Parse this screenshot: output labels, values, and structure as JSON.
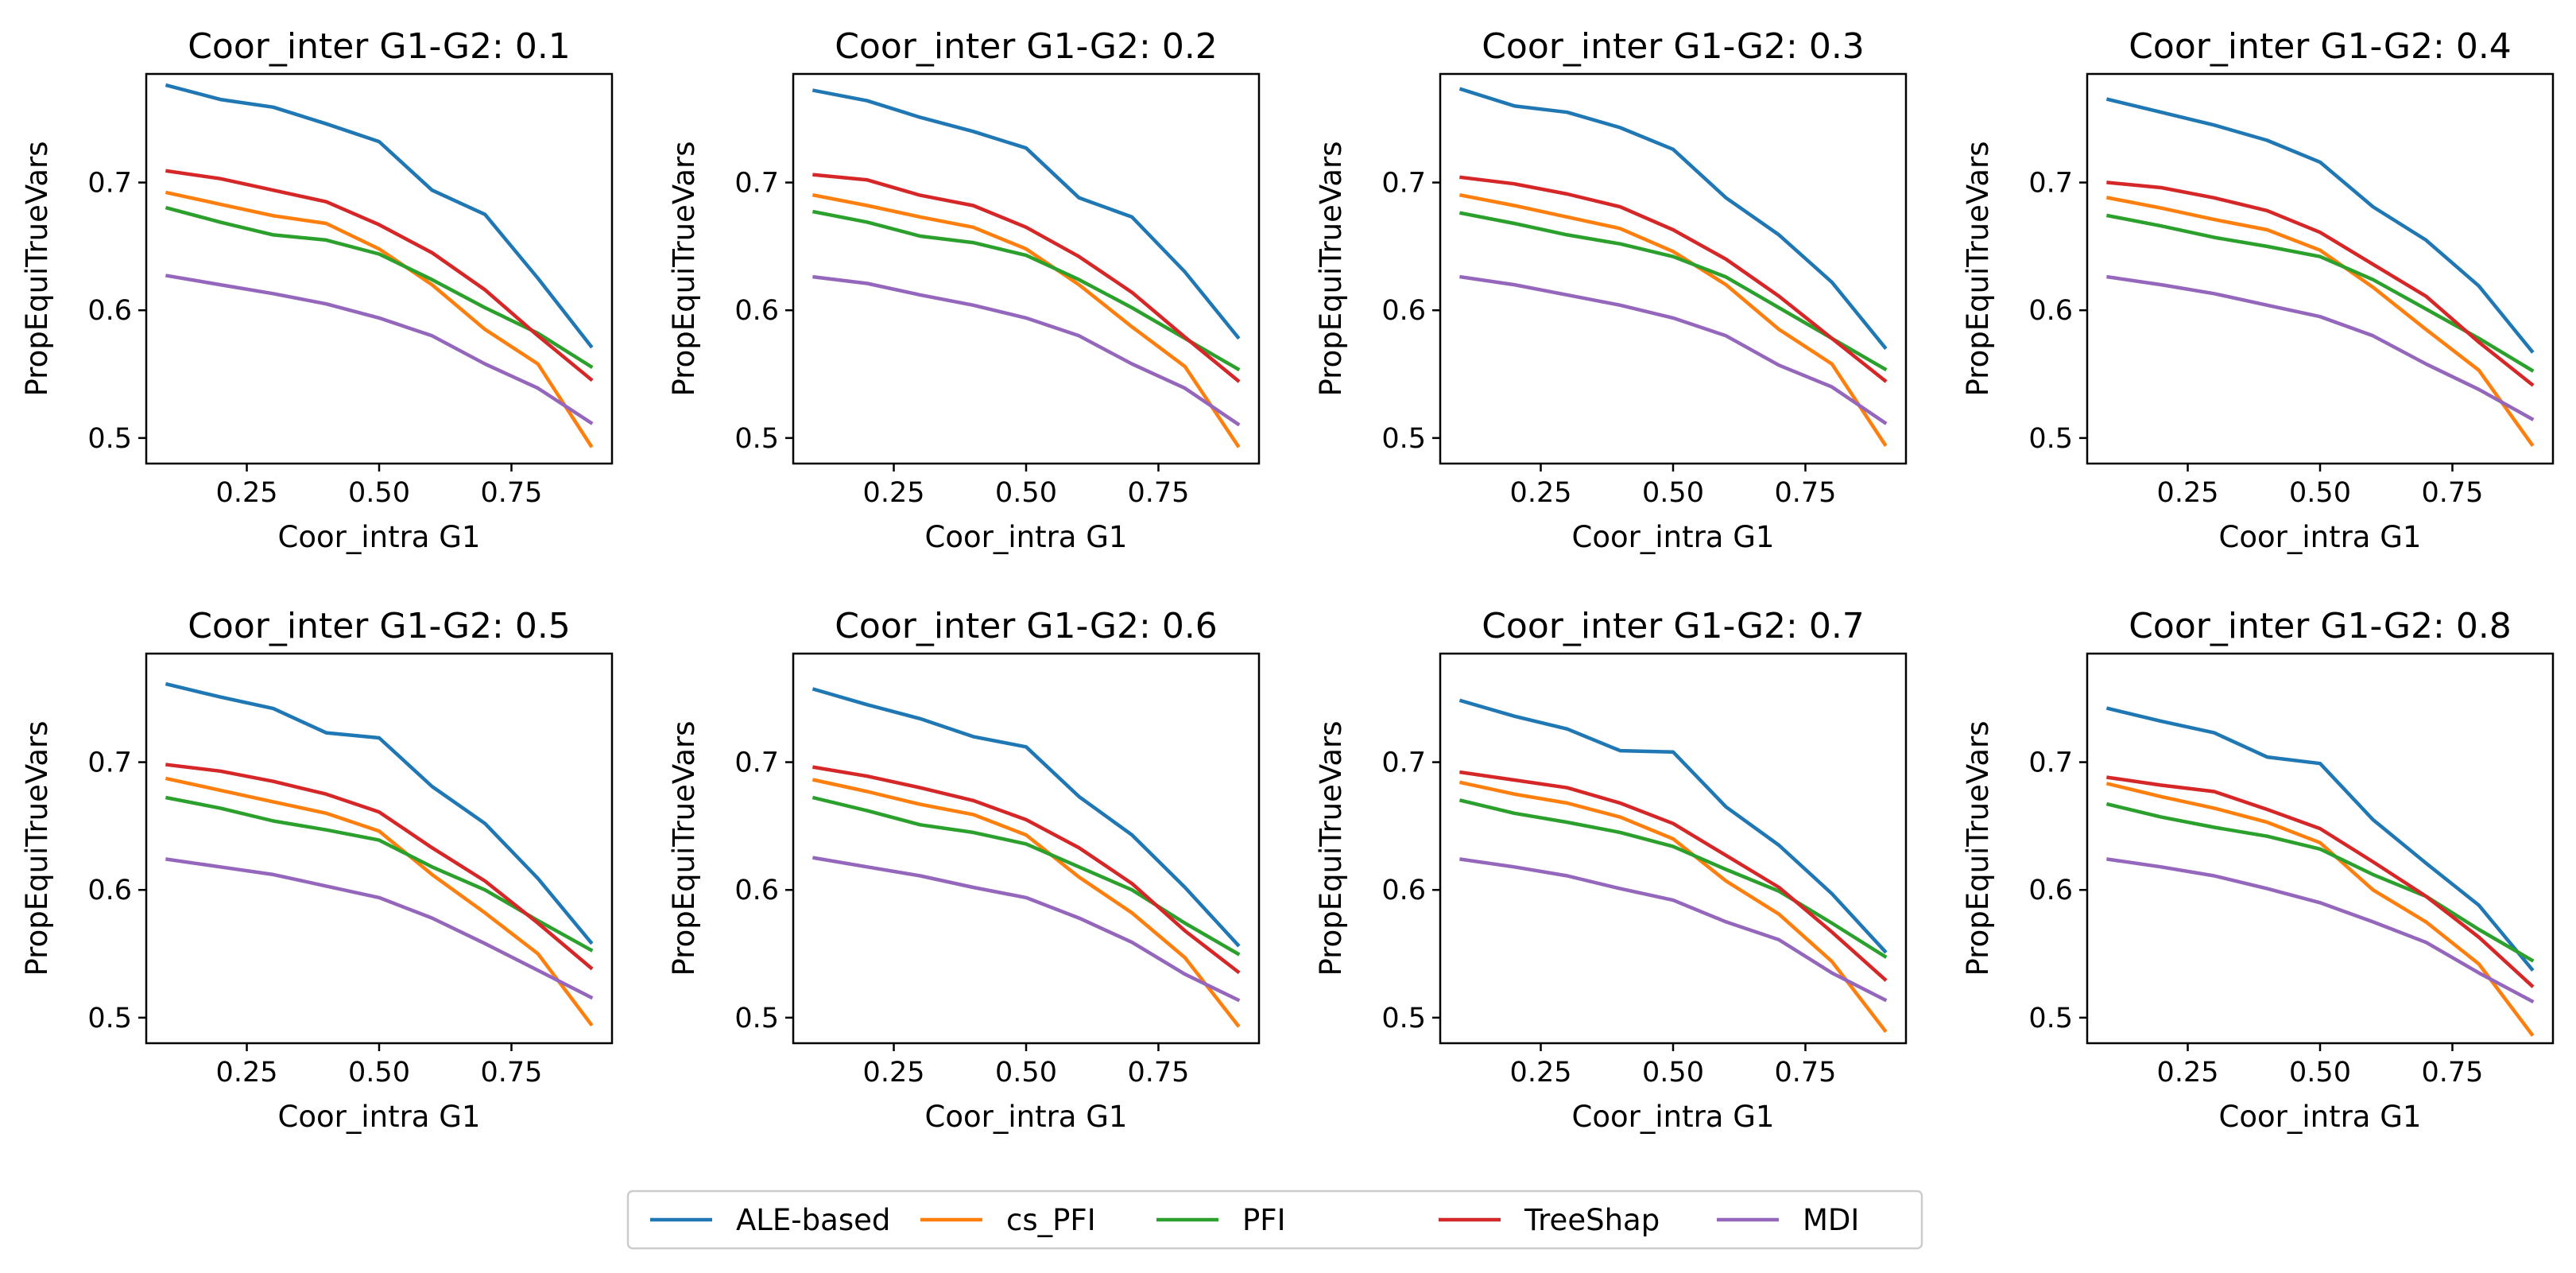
{
  "chart_data": {
    "type": "line",
    "layout": "2x4 subplots",
    "x": [
      0.1,
      0.2,
      0.3,
      0.4,
      0.5,
      0.6,
      0.7,
      0.8,
      0.9
    ],
    "xlabel": "Coor_intra G1",
    "ylabel": "PropEquiTrueVars",
    "xticks": [
      "0.25",
      "0.50",
      "0.75"
    ],
    "yticks": [
      "0.5",
      "0.6",
      "0.7"
    ],
    "xlim": [
      0.06,
      0.94
    ],
    "ylim": [
      0.48,
      0.785
    ],
    "legend": {
      "placement": "bottom-center",
      "entries": [
        {
          "name": "ALE-based",
          "color": "#1f77b4"
        },
        {
          "name": "cs_PFI",
          "color": "#ff7f0e"
        },
        {
          "name": "PFI",
          "color": "#2ca02c"
        },
        {
          "name": "TreeShap",
          "color": "#d62728"
        },
        {
          "name": "MDI",
          "color": "#9467bd"
        }
      ]
    },
    "panels": [
      {
        "title": "Coor_inter G1-G2: 0.1",
        "series": [
          {
            "name": "ALE-based",
            "values": [
              0.776,
              0.765,
              0.759,
              0.746,
              0.732,
              0.694,
              0.675,
              0.625,
              0.572
            ]
          },
          {
            "name": "cs_PFI",
            "values": [
              0.692,
              0.683,
              0.674,
              0.668,
              0.648,
              0.62,
              0.585,
              0.558,
              0.494
            ]
          },
          {
            "name": "PFI",
            "values": [
              0.68,
              0.669,
              0.659,
              0.655,
              0.644,
              0.624,
              0.602,
              0.582,
              0.556
            ]
          },
          {
            "name": "TreeShap",
            "values": [
              0.709,
              0.703,
              0.694,
              0.685,
              0.667,
              0.645,
              0.616,
              0.58,
              0.546
            ]
          },
          {
            "name": "MDI",
            "values": [
              0.627,
              0.62,
              0.613,
              0.605,
              0.594,
              0.58,
              0.558,
              0.539,
              0.512
            ]
          }
        ]
      },
      {
        "title": "Coor_inter G1-G2: 0.2",
        "series": [
          {
            "name": "ALE-based",
            "values": [
              0.772,
              0.764,
              0.751,
              0.74,
              0.727,
              0.688,
              0.673,
              0.63,
              0.579
            ]
          },
          {
            "name": "cs_PFI",
            "values": [
              0.69,
              0.682,
              0.673,
              0.665,
              0.648,
              0.62,
              0.587,
              0.556,
              0.494
            ]
          },
          {
            "name": "PFI",
            "values": [
              0.677,
              0.669,
              0.658,
              0.653,
              0.643,
              0.624,
              0.602,
              0.578,
              0.554
            ]
          },
          {
            "name": "TreeShap",
            "values": [
              0.706,
              0.702,
              0.69,
              0.682,
              0.665,
              0.642,
              0.614,
              0.579,
              0.545
            ]
          },
          {
            "name": "MDI",
            "values": [
              0.626,
              0.621,
              0.612,
              0.604,
              0.594,
              0.58,
              0.558,
              0.539,
              0.511
            ]
          }
        ]
      },
      {
        "title": "Coor_inter G1-G2: 0.3",
        "series": [
          {
            "name": "ALE-based",
            "values": [
              0.773,
              0.76,
              0.755,
              0.743,
              0.726,
              0.688,
              0.659,
              0.622,
              0.571
            ]
          },
          {
            "name": "cs_PFI",
            "values": [
              0.69,
              0.682,
              0.673,
              0.664,
              0.646,
              0.62,
              0.585,
              0.558,
              0.495
            ]
          },
          {
            "name": "PFI",
            "values": [
              0.676,
              0.668,
              0.659,
              0.652,
              0.642,
              0.626,
              0.602,
              0.578,
              0.554
            ]
          },
          {
            "name": "TreeShap",
            "values": [
              0.704,
              0.699,
              0.691,
              0.681,
              0.663,
              0.64,
              0.611,
              0.578,
              0.545
            ]
          },
          {
            "name": "MDI",
            "values": [
              0.626,
              0.62,
              0.612,
              0.604,
              0.594,
              0.58,
              0.557,
              0.54,
              0.512
            ]
          }
        ]
      },
      {
        "title": "Coor_inter G1-G2: 0.4",
        "series": [
          {
            "name": "ALE-based",
            "values": [
              0.765,
              0.755,
              0.745,
              0.733,
              0.716,
              0.681,
              0.655,
              0.619,
              0.568
            ]
          },
          {
            "name": "cs_PFI",
            "values": [
              0.688,
              0.68,
              0.671,
              0.663,
              0.647,
              0.618,
              0.585,
              0.553,
              0.495
            ]
          },
          {
            "name": "PFI",
            "values": [
              0.674,
              0.666,
              0.657,
              0.65,
              0.642,
              0.624,
              0.601,
              0.578,
              0.553
            ]
          },
          {
            "name": "TreeShap",
            "values": [
              0.7,
              0.696,
              0.688,
              0.678,
              0.661,
              0.636,
              0.611,
              0.575,
              0.542
            ]
          },
          {
            "name": "MDI",
            "values": [
              0.626,
              0.62,
              0.613,
              0.604,
              0.595,
              0.58,
              0.558,
              0.538,
              0.515
            ]
          }
        ]
      },
      {
        "title": "Coor_inter G1-G2: 0.5",
        "series": [
          {
            "name": "ALE-based",
            "values": [
              0.761,
              0.751,
              0.742,
              0.723,
              0.719,
              0.681,
              0.652,
              0.609,
              0.559
            ]
          },
          {
            "name": "cs_PFI",
            "values": [
              0.687,
              0.678,
              0.669,
              0.66,
              0.646,
              0.612,
              0.582,
              0.55,
              0.495
            ]
          },
          {
            "name": "PFI",
            "values": [
              0.672,
              0.664,
              0.654,
              0.647,
              0.639,
              0.618,
              0.6,
              0.576,
              0.553
            ]
          },
          {
            "name": "TreeShap",
            "values": [
              0.698,
              0.693,
              0.685,
              0.675,
              0.661,
              0.633,
              0.607,
              0.574,
              0.539
            ]
          },
          {
            "name": "MDI",
            "values": [
              0.624,
              0.618,
              0.612,
              0.603,
              0.594,
              0.578,
              0.558,
              0.537,
              0.516
            ]
          }
        ]
      },
      {
        "title": "Coor_inter G1-G2: 0.6",
        "series": [
          {
            "name": "ALE-based",
            "values": [
              0.757,
              0.745,
              0.734,
              0.72,
              0.712,
              0.673,
              0.643,
              0.602,
              0.557
            ]
          },
          {
            "name": "cs_PFI",
            "values": [
              0.686,
              0.677,
              0.667,
              0.659,
              0.643,
              0.61,
              0.582,
              0.547,
              0.494
            ]
          },
          {
            "name": "PFI",
            "values": [
              0.672,
              0.662,
              0.651,
              0.645,
              0.636,
              0.618,
              0.6,
              0.574,
              0.55
            ]
          },
          {
            "name": "TreeShap",
            "values": [
              0.696,
              0.689,
              0.68,
              0.67,
              0.655,
              0.633,
              0.605,
              0.568,
              0.536
            ]
          },
          {
            "name": "MDI",
            "values": [
              0.625,
              0.618,
              0.611,
              0.602,
              0.594,
              0.578,
              0.559,
              0.534,
              0.514
            ]
          }
        ]
      },
      {
        "title": "Coor_inter G1-G2: 0.7",
        "series": [
          {
            "name": "ALE-based",
            "values": [
              0.748,
              0.736,
              0.726,
              0.709,
              0.708,
              0.665,
              0.635,
              0.597,
              0.552
            ]
          },
          {
            "name": "cs_PFI",
            "values": [
              0.684,
              0.675,
              0.668,
              0.657,
              0.64,
              0.607,
              0.581,
              0.544,
              0.49
            ]
          },
          {
            "name": "PFI",
            "values": [
              0.67,
              0.66,
              0.653,
              0.645,
              0.634,
              0.616,
              0.599,
              0.574,
              0.548
            ]
          },
          {
            "name": "TreeShap",
            "values": [
              0.692,
              0.686,
              0.68,
              0.668,
              0.652,
              0.627,
              0.602,
              0.567,
              0.53
            ]
          },
          {
            "name": "MDI",
            "values": [
              0.624,
              0.618,
              0.611,
              0.601,
              0.592,
              0.575,
              0.561,
              0.535,
              0.514
            ]
          }
        ]
      },
      {
        "title": "Coor_inter G1-G2: 0.8",
        "series": [
          {
            "name": "ALE-based",
            "values": [
              0.742,
              0.732,
              0.723,
              0.704,
              0.699,
              0.655,
              0.621,
              0.588,
              0.538
            ]
          },
          {
            "name": "cs_PFI",
            "values": [
              0.683,
              0.673,
              0.664,
              0.653,
              0.637,
              0.6,
              0.575,
              0.542,
              0.487
            ]
          },
          {
            "name": "PFI",
            "values": [
              0.667,
              0.657,
              0.649,
              0.642,
              0.632,
              0.612,
              0.595,
              0.569,
              0.545
            ]
          },
          {
            "name": "TreeShap",
            "values": [
              0.688,
              0.682,
              0.677,
              0.663,
              0.648,
              0.622,
              0.595,
              0.563,
              0.525
            ]
          },
          {
            "name": "MDI",
            "values": [
              0.624,
              0.618,
              0.611,
              0.601,
              0.59,
              0.575,
              0.559,
              0.535,
              0.513
            ]
          }
        ]
      }
    ]
  }
}
